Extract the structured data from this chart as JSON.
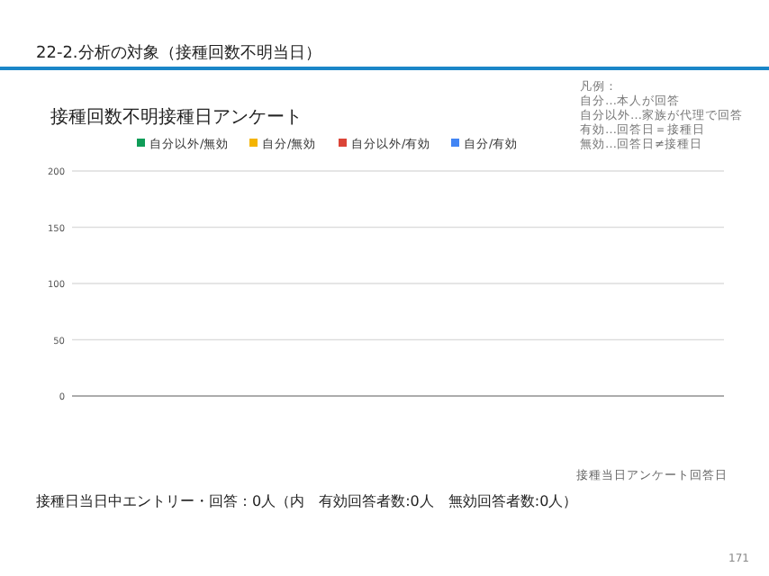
{
  "chart_data": {
    "type": "bar",
    "title": "22-2.分析の対象（接種回数不明当日）",
    "subtitle": "接種回数不明接種日アンケート",
    "annotations": [
      "凡例：",
      "自分…本人が回答",
      "自分以外…家族が代理で回答",
      "有効…回答日＝接種日",
      "無効…回答日≠接種日",
      "接種当日アンケート回答日",
      "接種日当日中エントリー・回答：0人（内　有効回答者数:0人　無効回答者数:0人）",
      "171"
    ],
    "categories": [
      null,
      null,
      null,
      null,
      null,
      null,
      null,
      null,
      null,
      null,
      null,
      null,
      null,
      null,
      null,
      null,
      null,
      null,
      null,
      null,
      null,
      null,
      null,
      null,
      null,
      null,
      null,
      null,
      null,
      null,
      null,
      null,
      null,
      null,
      null,
      null,
      null,
      null,
      null,
      null,
      null,
      null,
      null,
      null,
      null,
      null,
      null,
      null,
      null,
      null,
      null,
      null,
      null,
      null,
      null,
      null,
      null,
      null,
      null,
      null,
      null,
      null,
      null,
      null,
      null,
      null,
      null,
      null,
      null,
      null,
      null,
      null,
      null,
      null,
      null,
      null,
      null,
      null,
      null,
      null,
      null,
      null,
      null,
      null
    ],
    "series": [
      {
        "name": "自分以外/無効",
        "color": "#0f9d58",
        "values": [
          0,
          0,
          0,
          0,
          0,
          0,
          0,
          0,
          0,
          0,
          0,
          0,
          0,
          0,
          0,
          0,
          0,
          0,
          0,
          0,
          0,
          0,
          0,
          0,
          0,
          0,
          0,
          0,
          0,
          0,
          0,
          0,
          0,
          0,
          0,
          0,
          0,
          0,
          0,
          0,
          0,
          0,
          0,
          0,
          0,
          0,
          0,
          0,
          0,
          0,
          0,
          0,
          0,
          0,
          0,
          0,
          0,
          0,
          0,
          0,
          0,
          0,
          0,
          0,
          0,
          0,
          0,
          0,
          0,
          0,
          0,
          0,
          0,
          0,
          0,
          0,
          0,
          0,
          0,
          0,
          0,
          0,
          0,
          0
        ]
      },
      {
        "name": "自分/無効",
        "color": "#f4b400",
        "values": [
          0,
          0,
          0,
          0,
          0,
          0,
          0,
          0,
          0,
          0,
          0,
          0,
          0,
          0,
          0,
          0,
          0,
          0,
          0,
          0,
          0,
          0,
          0,
          0,
          0,
          0,
          0,
          0,
          0,
          0,
          0,
          0,
          0,
          0,
          0,
          0,
          0,
          0,
          0,
          0,
          0,
          0,
          0,
          0,
          0,
          0,
          0,
          0,
          0,
          0,
          0,
          0,
          0,
          0,
          0,
          0,
          0,
          0,
          0,
          0,
          0,
          0,
          0,
          0,
          0,
          0,
          0,
          0,
          0,
          0,
          0,
          0,
          0,
          0,
          0,
          0,
          0,
          0,
          0,
          0,
          0,
          0,
          0,
          0
        ]
      },
      {
        "name": "自分以外/有効",
        "color": "#db4437",
        "values": [
          0,
          0,
          0,
          0,
          0,
          0,
          0,
          0,
          0,
          0,
          0,
          0,
          0,
          0,
          0,
          0,
          0,
          0,
          0,
          0,
          0,
          0,
          0,
          0,
          0,
          0,
          0,
          0,
          0,
          0,
          0,
          0,
          0,
          0,
          0,
          0,
          0,
          0,
          0,
          0,
          0,
          0,
          0,
          0,
          0,
          0,
          0,
          0,
          0,
          0,
          0,
          0,
          0,
          0,
          0,
          0,
          0,
          0,
          0,
          0,
          0,
          0,
          0,
          0,
          0,
          0,
          0,
          0,
          0,
          0,
          0,
          0,
          0,
          0,
          0,
          0,
          0,
          0,
          0,
          0,
          0,
          0,
          0,
          0
        ]
      },
      {
        "name": "自分/有効",
        "color": "#4285f4",
        "values": [
          0,
          0,
          0,
          0,
          0,
          0,
          0,
          0,
          0,
          0,
          0,
          0,
          0,
          0,
          0,
          0,
          0,
          0,
          0,
          0,
          0,
          0,
          0,
          0,
          0,
          0,
          0,
          0,
          0,
          0,
          0,
          0,
          0,
          0,
          0,
          0,
          0,
          0,
          0,
          0,
          0,
          0,
          0,
          0,
          0,
          0,
          0,
          0,
          0,
          0,
          0,
          0,
          0,
          0,
          0,
          0,
          0,
          0,
          0,
          0,
          0,
          0,
          0,
          0,
          0,
          0,
          0,
          0,
          0,
          0,
          0,
          0,
          0,
          0,
          0,
          0,
          0,
          0,
          0,
          0,
          0,
          0,
          0,
          0
        ]
      }
    ],
    "ylim": [
      0,
      200
    ],
    "yticks": [
      0,
      50,
      100,
      150,
      200
    ],
    "grid": "y",
    "legend": "top"
  }
}
